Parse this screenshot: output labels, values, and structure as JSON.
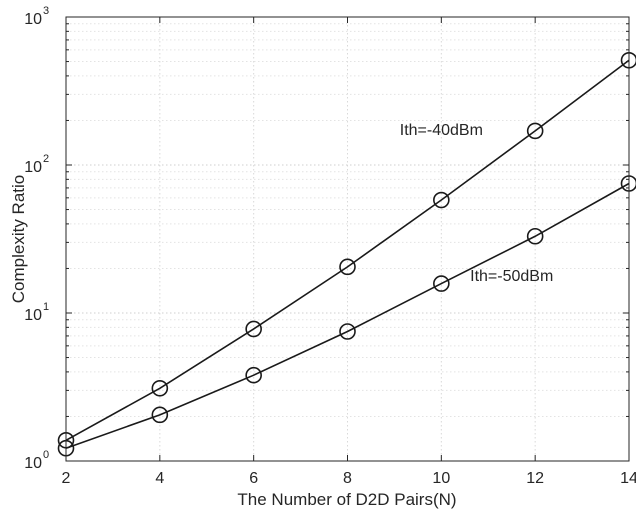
{
  "chart_data": {
    "type": "line",
    "title": "",
    "xlabel": "The Number of D2D Pairs(N)",
    "ylabel": "Complexity Ratio",
    "x": [
      2,
      4,
      6,
      8,
      10,
      12,
      14
    ],
    "xlim": [
      2,
      14
    ],
    "ylim": [
      1,
      1000
    ],
    "yscale": "log",
    "x_ticks": [
      "2",
      "4",
      "6",
      "8",
      "10",
      "12",
      "14"
    ],
    "y_ticks": [
      {
        "base": "10",
        "exp": "0",
        "value": 1
      },
      {
        "base": "10",
        "exp": "1",
        "value": 10
      },
      {
        "base": "10",
        "exp": "2",
        "value": 100
      },
      {
        "base": "10",
        "exp": "3",
        "value": 1000
      }
    ],
    "grid": true,
    "marker": "circle",
    "line_color": "#1a1a1a",
    "series": [
      {
        "label": "Ith=-40dBm",
        "values": [
          1.38,
          3.1,
          7.8,
          20.5,
          58,
          170,
          510
        ]
      },
      {
        "label": "Ith=-50dBm",
        "values": [
          1.22,
          2.05,
          3.8,
          7.5,
          15.8,
          33,
          75
        ]
      }
    ]
  }
}
